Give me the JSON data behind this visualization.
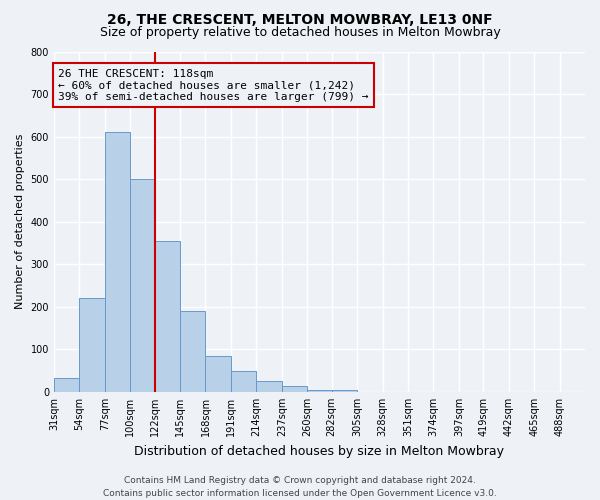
{
  "title": "26, THE CRESCENT, MELTON MOWBRAY, LE13 0NF",
  "subtitle": "Size of property relative to detached houses in Melton Mowbray",
  "xlabel": "Distribution of detached houses by size in Melton Mowbray",
  "ylabel": "Number of detached properties",
  "bar_values": [
    33,
    220,
    610,
    500,
    355,
    190,
    85,
    50,
    25,
    15,
    5,
    5,
    0,
    0,
    0,
    0,
    0,
    0,
    0,
    0
  ],
  "bin_labels": [
    "31sqm",
    "54sqm",
    "77sqm",
    "100sqm",
    "122sqm",
    "145sqm",
    "168sqm",
    "191sqm",
    "214sqm",
    "237sqm",
    "260sqm",
    "282sqm",
    "305sqm",
    "328sqm",
    "351sqm",
    "374sqm",
    "397sqm",
    "419sqm",
    "442sqm",
    "465sqm",
    "488sqm"
  ],
  "bin_edges": [
    31,
    54,
    77,
    100,
    122,
    145,
    168,
    191,
    214,
    237,
    260,
    282,
    305,
    328,
    351,
    374,
    397,
    419,
    442,
    465,
    488
  ],
  "bar_color": "#b8d0e8",
  "bar_edge_color": "#6699cc",
  "property_line_x": 122,
  "property_line_color": "#cc0000",
  "ylim": [
    0,
    800
  ],
  "yticks": [
    0,
    100,
    200,
    300,
    400,
    500,
    600,
    700,
    800
  ],
  "annotation_title": "26 THE CRESCENT: 118sqm",
  "annotation_line1": "← 60% of detached houses are smaller (1,242)",
  "annotation_line2": "39% of semi-detached houses are larger (799) →",
  "annotation_box_color": "#cc0000",
  "footer_line1": "Contains HM Land Registry data © Crown copyright and database right 2024.",
  "footer_line2": "Contains public sector information licensed under the Open Government Licence v3.0.",
  "background_color": "#eef2f7",
  "grid_color": "#ffffff",
  "title_fontsize": 10,
  "subtitle_fontsize": 9,
  "ylabel_fontsize": 8,
  "xlabel_fontsize": 9,
  "tick_fontsize": 7,
  "annotation_fontsize": 8,
  "footer_fontsize": 6.5
}
